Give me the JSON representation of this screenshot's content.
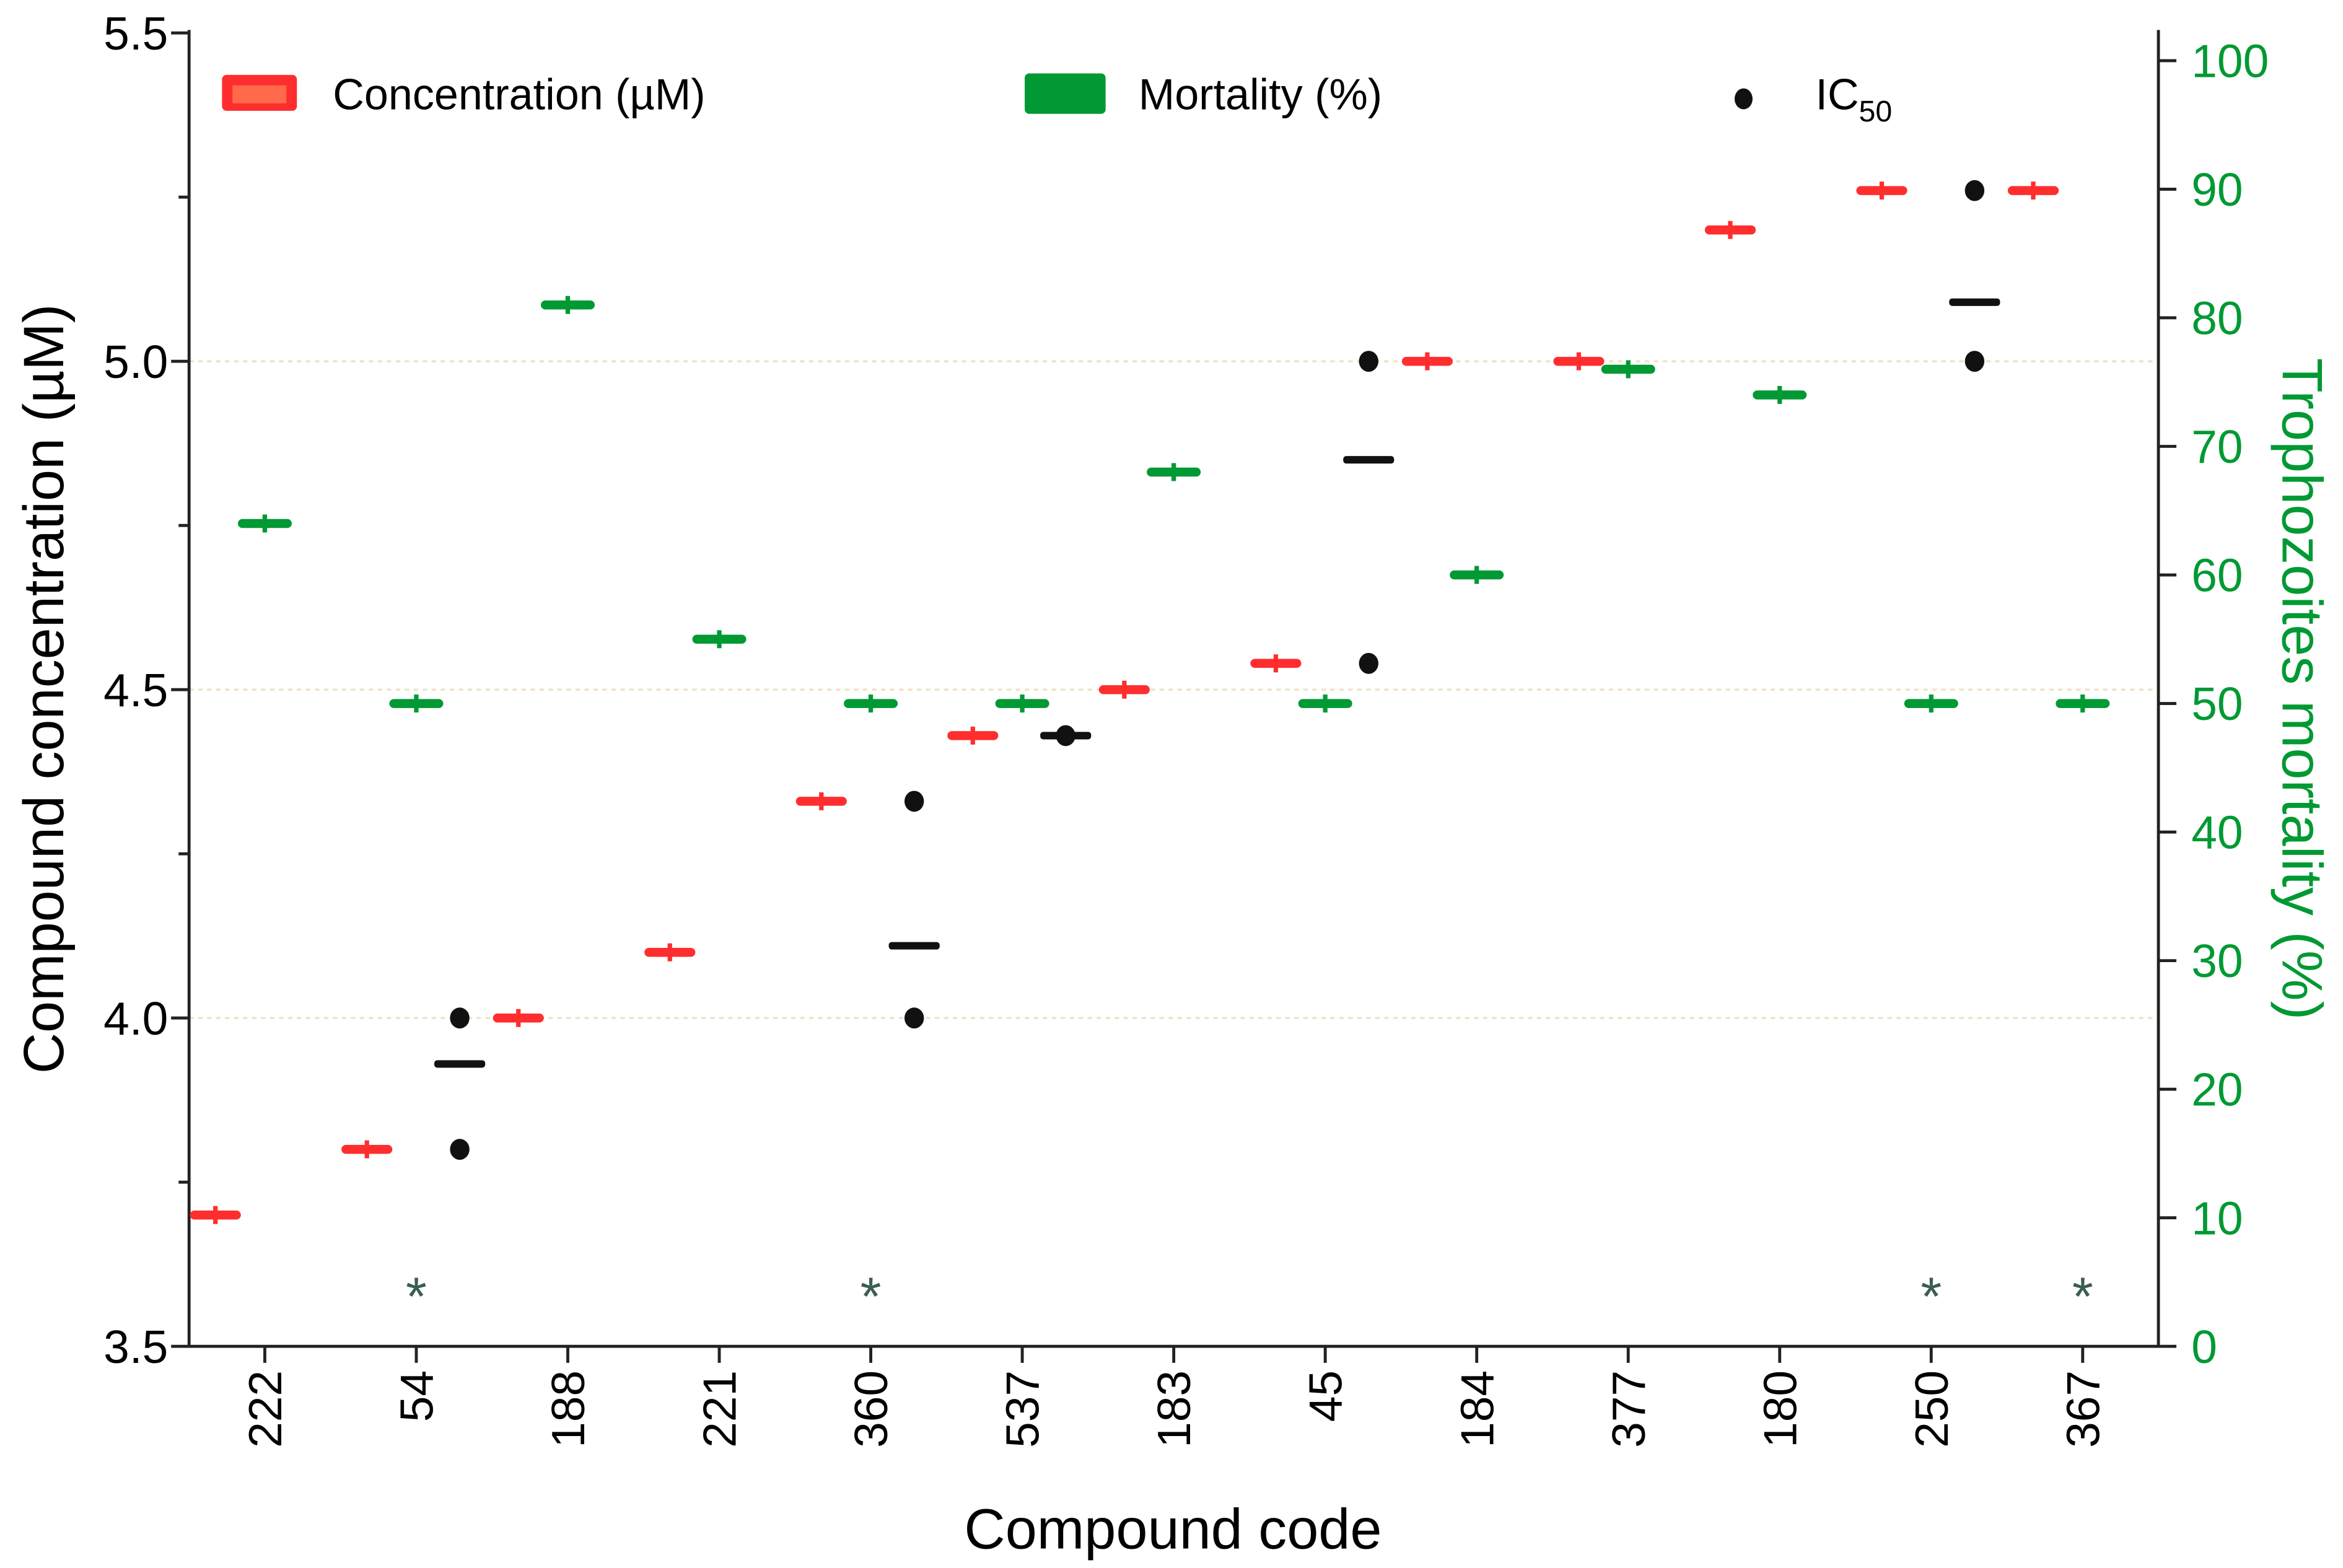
{
  "chart_data": {
    "type": "scatter",
    "xlabel": "Compound code",
    "ylabel": "Compound concentration (µM)",
    "y2label": "Trophozoites mortality (%)",
    "categories": [
      "222",
      "54",
      "188",
      "221",
      "360",
      "537",
      "183",
      "45",
      "184",
      "377",
      "180",
      "250",
      "367"
    ],
    "ylim": [
      3.5,
      5.5
    ],
    "yticks": [
      "3.5",
      "4.0",
      "4.5",
      "5.0",
      "5.5"
    ],
    "y2lim": [
      0,
      100
    ],
    "y2ticks": [
      "0",
      "10",
      "20",
      "30",
      "40",
      "50",
      "60",
      "70",
      "80",
      "90",
      "100"
    ],
    "grid_values": [
      4.0,
      4.5,
      5.0
    ],
    "legend": {
      "placement": "top",
      "concentration": "Concentration (µM)",
      "mortality": "Mortality (%)",
      "ic50": "IC",
      "ic50_sub": "50"
    },
    "series": [
      {
        "name": "Concentration (µM)",
        "axis": "left",
        "color": "#ff2e2e",
        "values": [
          3.7,
          3.8,
          4.0,
          4.1,
          4.33,
          4.43,
          4.5,
          4.54,
          5.0,
          5.0,
          5.2,
          5.26,
          5.26
        ]
      },
      {
        "name": "Mortality (%)",
        "axis": "right",
        "color": "#009933",
        "values": [
          64,
          50,
          81,
          55,
          50,
          50,
          68,
          50,
          60,
          76,
          74,
          50,
          50
        ]
      },
      {
        "name": "IC50",
        "axis": "left",
        "color": "#111111",
        "points": {
          "54": [
            3.8,
            4.0
          ],
          "360": [
            4.0,
            4.33
          ],
          "537": [
            4.43
          ],
          "45": [
            4.54,
            5.0
          ],
          "250": [
            5.0,
            5.26
          ]
        },
        "means": {
          "54": 3.93,
          "360": 4.11,
          "537": 4.43,
          "45": 4.85,
          "250": 5.09
        }
      }
    ],
    "significance": {
      "symbol": "*",
      "categories": [
        "54",
        "360",
        "250",
        "367"
      ]
    }
  }
}
